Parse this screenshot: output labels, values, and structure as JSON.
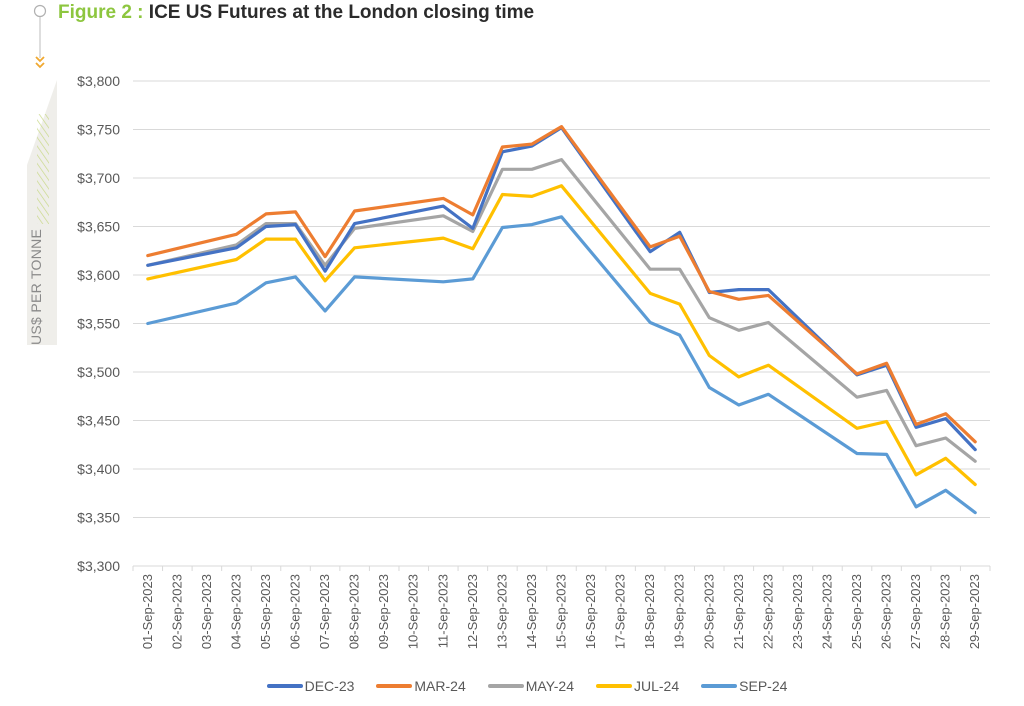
{
  "figure": {
    "prefix": "Figure 2 :",
    "title": "ICE US Futures at the London closing time"
  },
  "chart_data": {
    "type": "line",
    "title": "ICE US Futures at the London closing time",
    "xlabel": "",
    "ylabel": "US$ PER TONNE",
    "ylim": [
      3300,
      3800
    ],
    "yticks": [
      3300,
      3350,
      3400,
      3450,
      3500,
      3550,
      3600,
      3650,
      3700,
      3750,
      3800
    ],
    "ytick_labels": [
      "$3,300",
      "$3,350",
      "$3,400",
      "$3,450",
      "$3,500",
      "$3,550",
      "$3,600",
      "$3,650",
      "$3,700",
      "$3,750",
      "$3,800"
    ],
    "grid": true,
    "legend_position": "bottom",
    "categories": [
      "01-Sep-2023",
      "02-Sep-2023",
      "03-Sep-2023",
      "04-Sep-2023",
      "05-Sep-2023",
      "06-Sep-2023",
      "07-Sep-2023",
      "08-Sep-2023",
      "09-Sep-2023",
      "10-Sep-2023",
      "11-Sep-2023",
      "12-Sep-2023",
      "13-Sep-2023",
      "14-Sep-2023",
      "15-Sep-2023",
      "16-Sep-2023",
      "17-Sep-2023",
      "18-Sep-2023",
      "19-Sep-2023",
      "20-Sep-2023",
      "21-Sep-2023",
      "22-Sep-2023",
      "23-Sep-2023",
      "24-Sep-2023",
      "25-Sep-2023",
      "26-Sep-2023",
      "27-Sep-2023",
      "28-Sep-2023",
      "29-Sep-2023"
    ],
    "series": [
      {
        "name": "DEC-23",
        "color": "#4472c4",
        "values": [
          3610,
          null,
          null,
          3628,
          3650,
          3652,
          3604,
          3653,
          null,
          null,
          3671,
          3648,
          3727,
          3733,
          3752,
          null,
          null,
          3624,
          3644,
          3582,
          3585,
          3585,
          null,
          null,
          3497,
          3507,
          3443,
          3452,
          3420
        ]
      },
      {
        "name": "MAR-24",
        "color": "#ed7d31",
        "values": [
          3620,
          null,
          null,
          3642,
          3663,
          3665,
          3619,
          3666,
          null,
          null,
          3679,
          3662,
          3732,
          3735,
          3753,
          null,
          null,
          3629,
          3640,
          3583,
          3575,
          3579,
          null,
          null,
          3498,
          3509,
          3446,
          3457,
          3428
        ]
      },
      {
        "name": "MAY-24",
        "color": "#a5a5a5",
        "values": [
          3610,
          null,
          null,
          3631,
          3653,
          3653,
          3610,
          3648,
          null,
          null,
          3661,
          3645,
          3709,
          3709,
          3719,
          null,
          null,
          3606,
          3606,
          3556,
          3543,
          3551,
          null,
          null,
          3474,
          3481,
          3424,
          3432,
          3408
        ]
      },
      {
        "name": "JUL-24",
        "color": "#ffc000",
        "values": [
          3596,
          null,
          null,
          3616,
          3637,
          3637,
          3594,
          3628,
          null,
          null,
          3638,
          3627,
          3683,
          3681,
          3692,
          null,
          null,
          3581,
          3570,
          3517,
          3495,
          3507,
          null,
          null,
          3442,
          3449,
          3394,
          3411,
          3384
        ]
      },
      {
        "name": "SEP-24",
        "color": "#5b9bd5",
        "values": [
          3550,
          null,
          null,
          3571,
          3592,
          3598,
          3563,
          3598,
          null,
          null,
          3593,
          3596,
          3649,
          3652,
          3660,
          null,
          null,
          3551,
          3538,
          3484,
          3466,
          3477,
          null,
          null,
          3416,
          3415,
          3361,
          3378,
          3355
        ]
      }
    ]
  }
}
